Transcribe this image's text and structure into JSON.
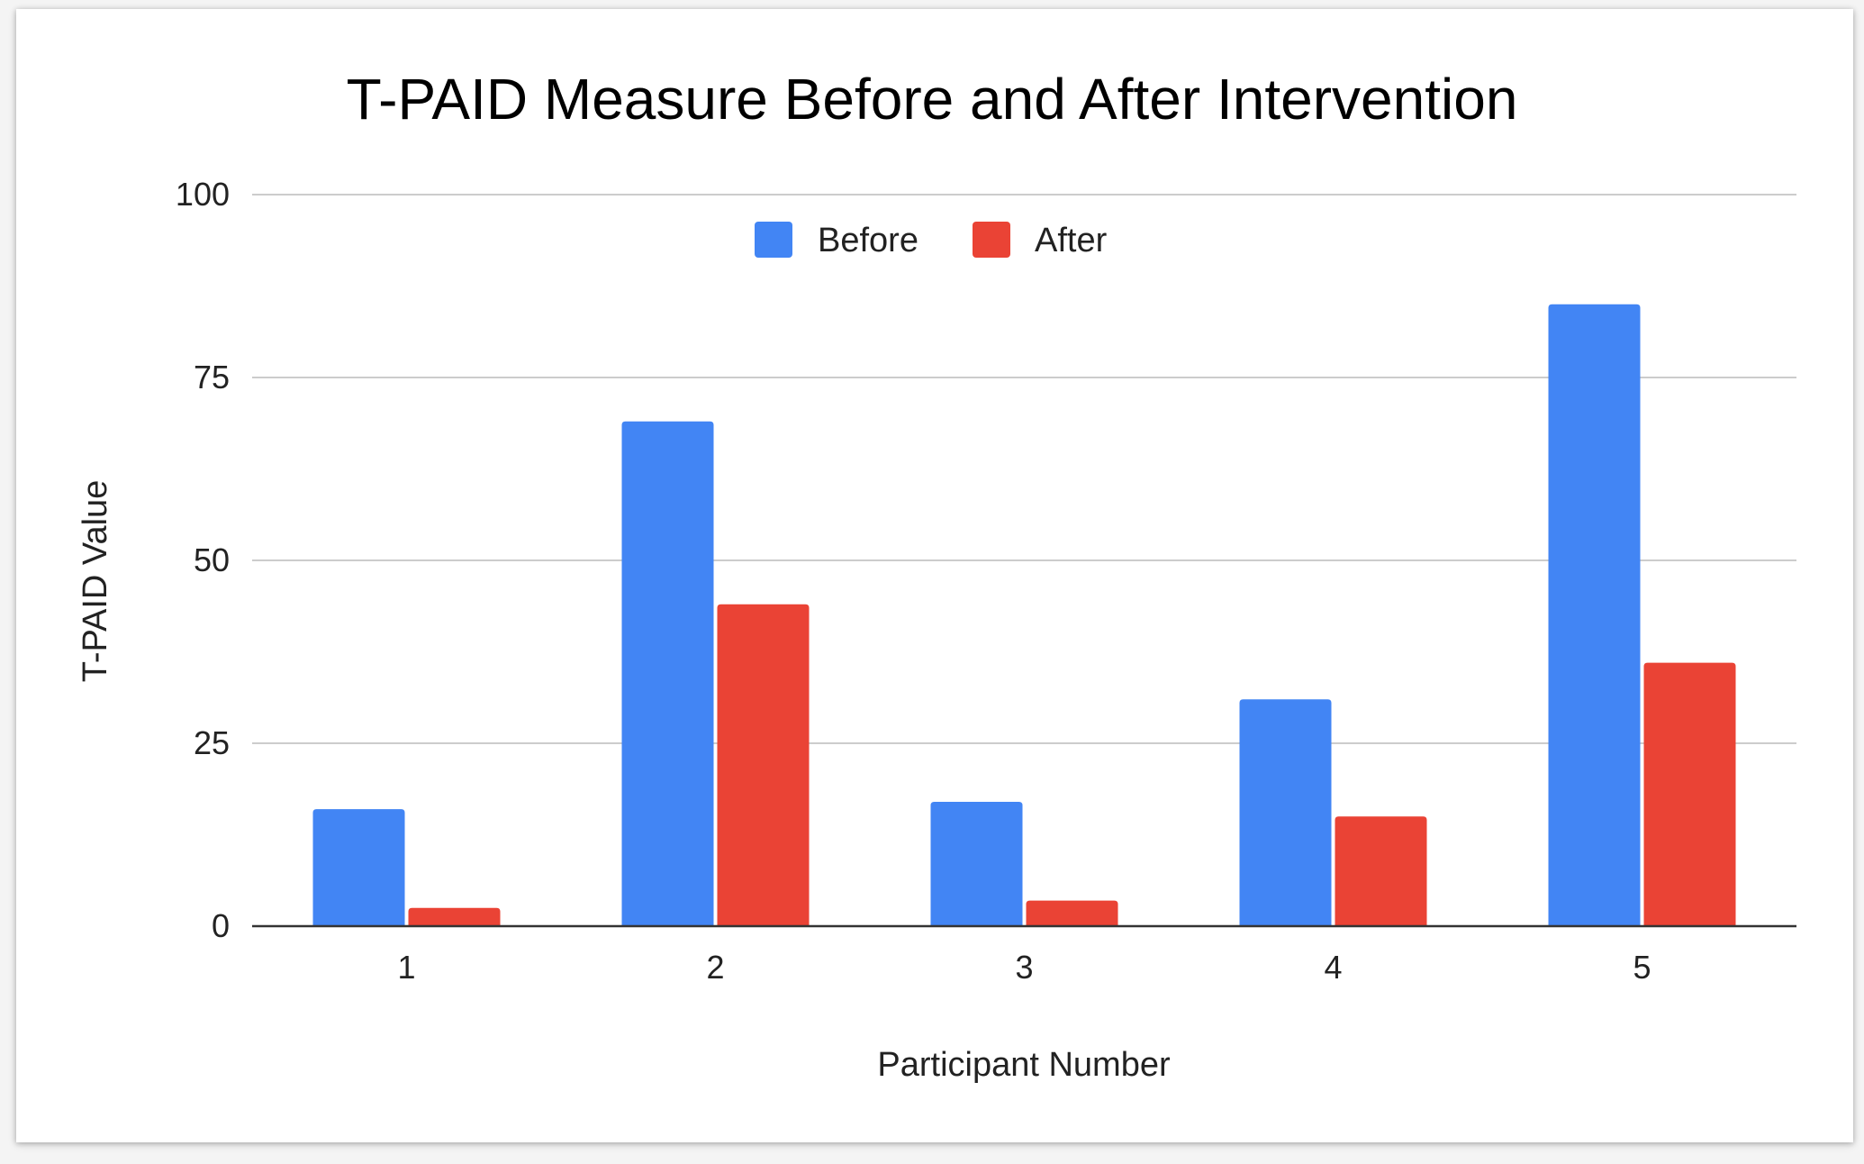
{
  "chart_data": {
    "type": "bar",
    "title": "T-PAID Measure Before and After Intervention",
    "xlabel": "Participant Number",
    "ylabel": "T-PAID Value",
    "categories": [
      "1",
      "2",
      "3",
      "4",
      "5"
    ],
    "series": [
      {
        "name": "Before",
        "color": "#4285f4",
        "values": [
          16,
          69,
          17,
          31,
          85
        ]
      },
      {
        "name": "After",
        "color": "#ea4335",
        "values": [
          2.5,
          44,
          3.5,
          15,
          36
        ]
      }
    ],
    "ylim": [
      0,
      100
    ],
    "yticks": [
      0,
      25,
      50,
      75,
      100
    ],
    "grid": true,
    "legend_position": "top-center"
  }
}
